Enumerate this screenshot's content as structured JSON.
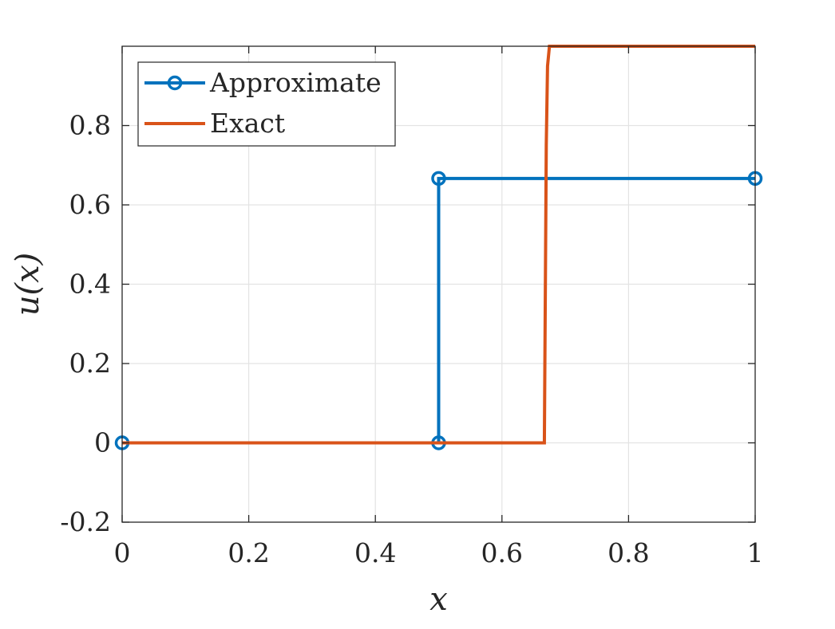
{
  "chart_data": {
    "type": "line",
    "title": "",
    "xlabel": "x",
    "ylabel": "u(x)",
    "xlim": [
      0,
      1
    ],
    "ylim": [
      -0.2,
      1.0
    ],
    "x_ticks": [
      0,
      0.2,
      0.4,
      0.6,
      0.8,
      1
    ],
    "x_tick_labels": [
      "0",
      "0.2",
      "0.4",
      "0.6",
      "0.8",
      "1"
    ],
    "y_ticks": [
      -0.2,
      0,
      0.2,
      0.4,
      0.6,
      0.8
    ],
    "y_tick_labels": [
      "-0.2",
      "0",
      "0.2",
      "0.4",
      "0.6",
      "0.8"
    ],
    "grid": true,
    "legend_position": "top-left",
    "series": [
      {
        "name": "Approximate",
        "color": "#0072BD",
        "marker": "circle",
        "line_style": "step",
        "x": [
          0,
          0.5,
          0.5,
          1
        ],
        "y": [
          0,
          0,
          0.6667,
          0.6667
        ]
      },
      {
        "name": "Exact",
        "color": "#D95319",
        "marker": "none",
        "line_style": "solid",
        "x": [
          0,
          0.667,
          0.668,
          0.67,
          0.672,
          0.675,
          1
        ],
        "y": [
          0,
          0,
          0.25,
          0.75,
          0.95,
          1.0,
          1.0
        ]
      }
    ]
  }
}
